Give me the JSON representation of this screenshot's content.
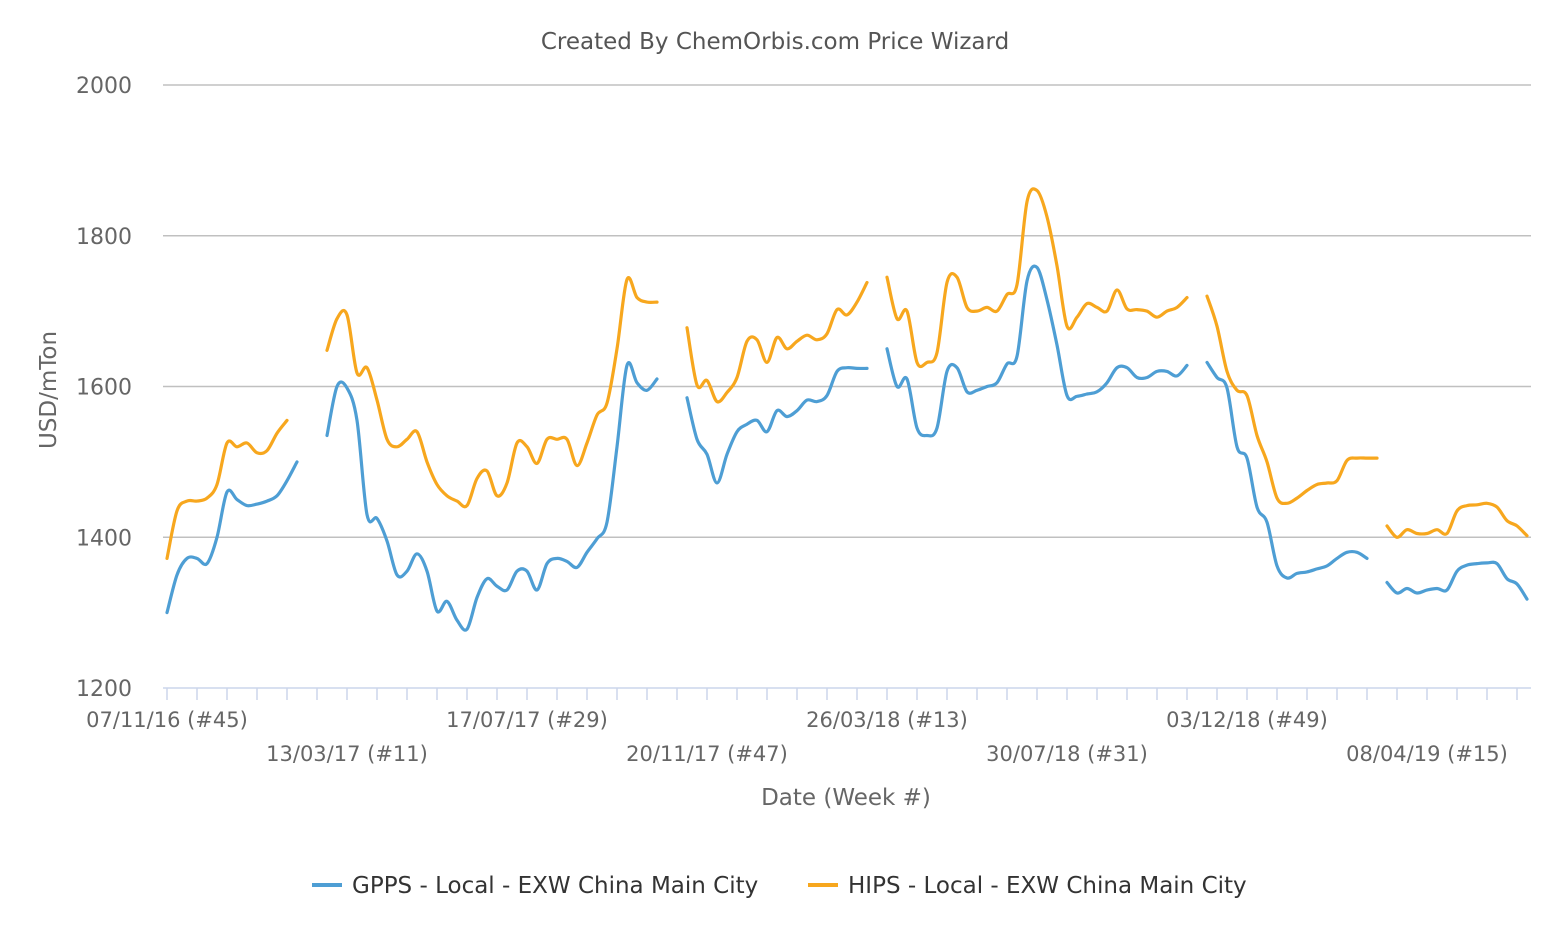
{
  "chart_data": {
    "type": "line",
    "title": "Created By ChemOrbis.com Price Wizard",
    "xlabel": "Date (Week #)",
    "ylabel": "USD/mTon",
    "ylim": [
      1200,
      2000
    ],
    "yticks": [
      1200,
      1400,
      1600,
      1800,
      2000
    ],
    "grid": true,
    "legend_position": "bottom-center",
    "x_tick_labels": [
      {
        "label": "07/11/16 (#45)",
        "week_index": 0,
        "row": 1
      },
      {
        "label": "13/03/17 (#11)",
        "week_index": 18,
        "row": 2
      },
      {
        "label": "17/07/17 (#29)",
        "week_index": 36,
        "row": 1
      },
      {
        "label": "20/11/17 (#47)",
        "week_index": 54,
        "row": 2
      },
      {
        "label": "26/03/18 (#13)",
        "week_index": 72,
        "row": 1
      },
      {
        "label": "30/07/18 (#31)",
        "week_index": 90,
        "row": 2
      },
      {
        "label": "03/12/18 (#49)",
        "week_index": 108,
        "row": 1
      },
      {
        "label": "08/04/19 (#15)",
        "week_index": 126,
        "row": 2
      }
    ],
    "total_weeks": 132,
    "series": [
      {
        "name": "GPPS - Local - EXW China Main City",
        "color": "#4e9ed4",
        "segments": [
          [
            [
              0,
              1300
            ],
            [
              1,
              1350
            ],
            [
              2,
              1372
            ],
            [
              3,
              1372
            ],
            [
              4,
              1365
            ],
            [
              5,
              1400
            ],
            [
              6,
              1460
            ],
            [
              7,
              1450
            ],
            [
              8,
              1442
            ],
            [
              9,
              1444
            ],
            [
              10,
              1448
            ],
            [
              11,
              1455
            ],
            [
              12,
              1475
            ],
            [
              13,
              1500
            ]
          ],
          [
            [
              16,
              1535
            ],
            [
              17,
              1600
            ],
            [
              18,
              1598
            ],
            [
              19,
              1555
            ],
            [
              20,
              1430
            ],
            [
              21,
              1425
            ],
            [
              22,
              1395
            ],
            [
              23,
              1350
            ],
            [
              24,
              1355
            ],
            [
              25,
              1378
            ],
            [
              26,
              1355
            ],
            [
              27,
              1302
            ],
            [
              28,
              1315
            ],
            [
              29,
              1290
            ],
            [
              30,
              1278
            ],
            [
              31,
              1320
            ],
            [
              32,
              1345
            ],
            [
              33,
              1335
            ],
            [
              34,
              1330
            ],
            [
              35,
              1355
            ],
            [
              36,
              1355
            ],
            [
              37,
              1330
            ],
            [
              38,
              1365
            ],
            [
              39,
              1372
            ],
            [
              40,
              1368
            ],
            [
              41,
              1360
            ],
            [
              42,
              1380
            ],
            [
              43,
              1398
            ],
            [
              44,
              1420
            ],
            [
              45,
              1520
            ],
            [
              46,
              1628
            ],
            [
              47,
              1605
            ],
            [
              48,
              1595
            ],
            [
              49,
              1610
            ]
          ],
          [
            [
              52,
              1585
            ],
            [
              53,
              1530
            ],
            [
              54,
              1510
            ],
            [
              55,
              1472
            ],
            [
              56,
              1510
            ],
            [
              57,
              1540
            ],
            [
              58,
              1550
            ],
            [
              59,
              1555
            ],
            [
              60,
              1540
            ],
            [
              61,
              1568
            ],
            [
              62,
              1560
            ],
            [
              63,
              1568
            ],
            [
              64,
              1582
            ],
            [
              65,
              1580
            ],
            [
              66,
              1588
            ],
            [
              67,
              1620
            ],
            [
              68,
              1625
            ],
            [
              69,
              1624
            ],
            [
              70,
              1624
            ]
          ],
          [
            [
              72,
              1650
            ],
            [
              73,
              1600
            ],
            [
              74,
              1610
            ],
            [
              75,
              1545
            ],
            [
              76,
              1535
            ],
            [
              77,
              1545
            ],
            [
              78,
              1620
            ],
            [
              79,
              1625
            ],
            [
              80,
              1593
            ],
            [
              81,
              1595
            ],
            [
              82,
              1600
            ],
            [
              83,
              1605
            ],
            [
              84,
              1630
            ],
            [
              85,
              1640
            ],
            [
              86,
              1740
            ],
            [
              87,
              1758
            ],
            [
              88,
              1715
            ],
            [
              89,
              1655
            ],
            [
              90,
              1588
            ],
            [
              91,
              1587
            ],
            [
              92,
              1590
            ],
            [
              93,
              1593
            ],
            [
              94,
              1605
            ],
            [
              95,
              1625
            ],
            [
              96,
              1625
            ],
            [
              97,
              1612
            ],
            [
              98,
              1612
            ],
            [
              99,
              1620
            ],
            [
              100,
              1620
            ],
            [
              101,
              1614
            ],
            [
              102,
              1628
            ]
          ],
          [
            [
              104,
              1632
            ],
            [
              105,
              1612
            ],
            [
              106,
              1598
            ],
            [
              107,
              1520
            ],
            [
              108,
              1505
            ],
            [
              109,
              1440
            ],
            [
              110,
              1420
            ],
            [
              111,
              1362
            ],
            [
              112,
              1346
            ],
            [
              113,
              1352
            ],
            [
              114,
              1354
            ],
            [
              115,
              1358
            ],
            [
              116,
              1362
            ],
            [
              117,
              1372
            ],
            [
              118,
              1380
            ],
            [
              119,
              1380
            ],
            [
              120,
              1372
            ]
          ],
          [
            [
              122,
              1340
            ],
            [
              123,
              1326
            ],
            [
              124,
              1332
            ],
            [
              125,
              1326
            ],
            [
              126,
              1330
            ],
            [
              127,
              1332
            ],
            [
              128,
              1330
            ],
            [
              129,
              1355
            ],
            [
              130,
              1363
            ],
            [
              131,
              1365
            ],
            [
              132,
              1366
            ],
            [
              133,
              1365
            ],
            [
              134,
              1345
            ],
            [
              135,
              1338
            ],
            [
              136,
              1318
            ]
          ]
        ]
      },
      {
        "name": "HIPS - Local - EXW China Main City",
        "color": "#f7a71e",
        "segments": [
          [
            [
              0,
              1372
            ],
            [
              1,
              1435
            ],
            [
              2,
              1448
            ],
            [
              3,
              1448
            ],
            [
              4,
              1452
            ],
            [
              5,
              1470
            ],
            [
              6,
              1525
            ],
            [
              7,
              1520
            ],
            [
              8,
              1525
            ],
            [
              9,
              1512
            ],
            [
              10,
              1515
            ],
            [
              11,
              1538
            ],
            [
              12,
              1555
            ]
          ],
          [
            [
              16,
              1648
            ],
            [
              17,
              1690
            ],
            [
              18,
              1695
            ],
            [
              19,
              1618
            ],
            [
              20,
              1625
            ],
            [
              21,
              1582
            ],
            [
              22,
              1530
            ],
            [
              23,
              1520
            ],
            [
              24,
              1530
            ],
            [
              25,
              1540
            ],
            [
              26,
              1500
            ],
            [
              27,
              1470
            ],
            [
              28,
              1455
            ],
            [
              29,
              1448
            ],
            [
              30,
              1442
            ],
            [
              31,
              1478
            ],
            [
              32,
              1488
            ],
            [
              33,
              1455
            ],
            [
              34,
              1472
            ],
            [
              35,
              1525
            ],
            [
              36,
              1520
            ],
            [
              37,
              1498
            ],
            [
              38,
              1530
            ],
            [
              39,
              1530
            ],
            [
              40,
              1530
            ],
            [
              41,
              1495
            ],
            [
              42,
              1525
            ],
            [
              43,
              1562
            ],
            [
              44,
              1578
            ],
            [
              45,
              1650
            ],
            [
              46,
              1742
            ],
            [
              47,
              1718
            ],
            [
              48,
              1712
            ],
            [
              49,
              1712
            ]
          ],
          [
            [
              52,
              1678
            ],
            [
              53,
              1602
            ],
            [
              54,
              1608
            ],
            [
              55,
              1580
            ],
            [
              56,
              1592
            ],
            [
              57,
              1612
            ],
            [
              58,
              1660
            ],
            [
              59,
              1662
            ],
            [
              60,
              1632
            ],
            [
              61,
              1665
            ],
            [
              62,
              1650
            ],
            [
              63,
              1660
            ],
            [
              64,
              1668
            ],
            [
              65,
              1662
            ],
            [
              66,
              1670
            ],
            [
              67,
              1702
            ],
            [
              68,
              1695
            ],
            [
              69,
              1712
            ],
            [
              70,
              1738
            ]
          ],
          [
            [
              72,
              1745
            ],
            [
              73,
              1690
            ],
            [
              74,
              1700
            ],
            [
              75,
              1632
            ],
            [
              76,
              1632
            ],
            [
              77,
              1645
            ],
            [
              78,
              1738
            ],
            [
              79,
              1745
            ],
            [
              80,
              1705
            ],
            [
              81,
              1700
            ],
            [
              82,
              1705
            ],
            [
              83,
              1700
            ],
            [
              84,
              1722
            ],
            [
              85,
              1735
            ],
            [
              86,
              1845
            ],
            [
              87,
              1860
            ],
            [
              88,
              1825
            ],
            [
              89,
              1760
            ],
            [
              90,
              1680
            ],
            [
              91,
              1692
            ],
            [
              92,
              1710
            ],
            [
              93,
              1705
            ],
            [
              94,
              1700
            ],
            [
              95,
              1728
            ],
            [
              96,
              1703
            ],
            [
              97,
              1702
            ],
            [
              98,
              1700
            ],
            [
              99,
              1692
            ],
            [
              100,
              1700
            ],
            [
              101,
              1705
            ],
            [
              102,
              1718
            ]
          ],
          [
            [
              104,
              1720
            ],
            [
              105,
              1680
            ],
            [
              106,
              1620
            ],
            [
              107,
              1595
            ],
            [
              108,
              1588
            ],
            [
              109,
              1535
            ],
            [
              110,
              1500
            ],
            [
              111,
              1452
            ],
            [
              112,
              1445
            ],
            [
              113,
              1452
            ],
            [
              114,
              1462
            ],
            [
              115,
              1470
            ],
            [
              116,
              1472
            ],
            [
              117,
              1475
            ],
            [
              118,
              1502
            ],
            [
              119,
              1505
            ],
            [
              120,
              1505
            ],
            [
              121,
              1505
            ]
          ],
          [
            [
              122,
              1415
            ],
            [
              123,
              1400
            ],
            [
              124,
              1410
            ],
            [
              125,
              1405
            ],
            [
              126,
              1405
            ],
            [
              127,
              1410
            ],
            [
              128,
              1405
            ],
            [
              129,
              1435
            ],
            [
              130,
              1442
            ],
            [
              131,
              1443
            ],
            [
              132,
              1445
            ],
            [
              133,
              1440
            ],
            [
              134,
              1422
            ],
            [
              135,
              1415
            ],
            [
              136,
              1402
            ]
          ]
        ]
      }
    ]
  }
}
